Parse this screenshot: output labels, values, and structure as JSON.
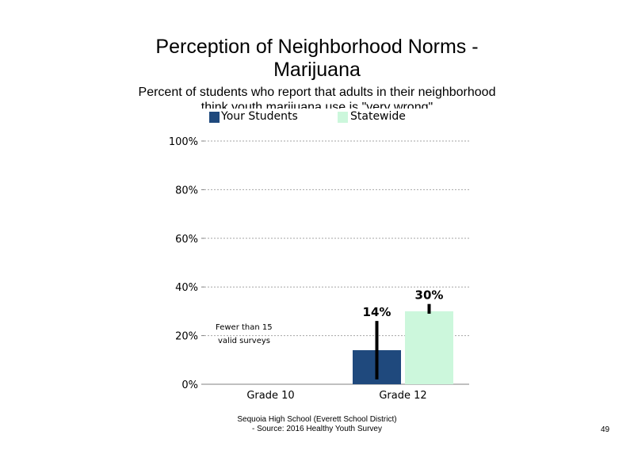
{
  "chart_data": {
    "type": "bar",
    "title": "Perception of Neighborhood Norms - Marijuana",
    "subtitle": "Percent of students who report that adults in their neighborhood think youth marijuana use is \"very wrong\"",
    "categories": [
      "Grade 10",
      "Grade 12"
    ],
    "series": [
      {
        "name": "Your Students",
        "color": "#1f497d",
        "values": [
          null,
          14
        ],
        "labels": [
          "",
          "14%"
        ],
        "ci": [
          null,
          [
            2,
            26
          ]
        ]
      },
      {
        "name": "Statewide",
        "color": "#ccf7dc",
        "values": [
          null,
          30
        ],
        "labels": [
          "",
          "30%"
        ],
        "ci": [
          null,
          [
            29,
            33
          ]
        ]
      }
    ],
    "y_ticks": [
      0,
      20,
      40,
      60,
      80,
      100
    ],
    "y_tick_labels": [
      "0%",
      "20%",
      "40%",
      "60%",
      "80%",
      "100%"
    ],
    "ylim": [
      0,
      100
    ],
    "grid": true,
    "legend_position": "top",
    "annotations": [
      "Fewer than 15",
      "valid surveys"
    ],
    "footer": [
      "Sequoia High School (Everett School District)",
      "- Source: 2016 Healthy Youth Survey"
    ],
    "page_number": "49"
  }
}
